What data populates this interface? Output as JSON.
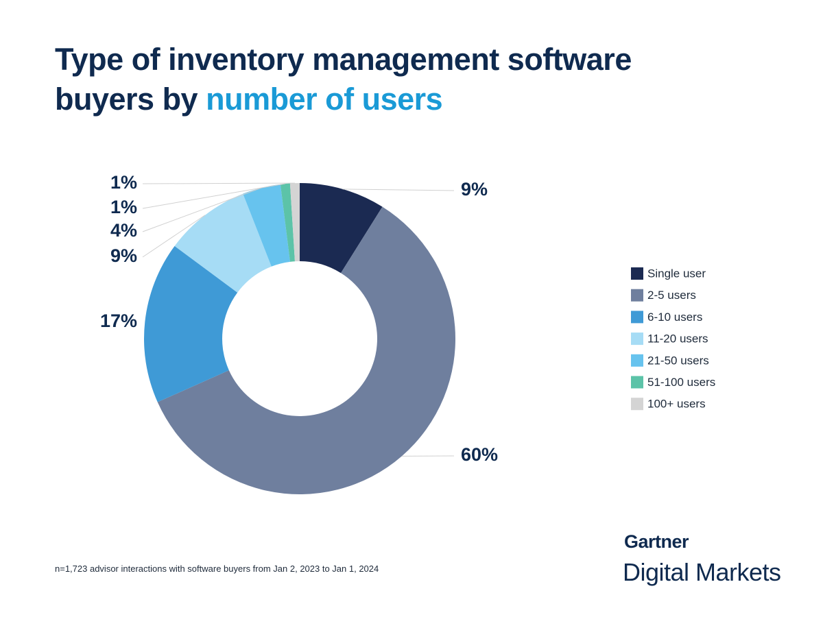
{
  "chart_data": {
    "type": "donut",
    "title": "Type of inventory management software buyers by",
    "title_highlight": "number of users",
    "categories": [
      "Single user",
      "2-5 users",
      "6-10 users",
      "11-20 users",
      "21-50 users",
      "51-100 users",
      "100+ users"
    ],
    "values": [
      9,
      60,
      17,
      9,
      4,
      1,
      1
    ],
    "value_labels": [
      "9%",
      "60%",
      "17%",
      "9%",
      "4%",
      "1%",
      "1%"
    ],
    "colors": [
      "#1b2a52",
      "#6f7f9e",
      "#3f9ad6",
      "#a6dcf5",
      "#67c3ee",
      "#5cc3a8",
      "#d4d4d4"
    ],
    "legend": "right",
    "footnote": "n=1,723 advisor interactions with software buyers from Jan 2, 2023 to Jan 1, 2024"
  },
  "brand": {
    "name": "Gartner",
    "product": "Digital Markets"
  }
}
